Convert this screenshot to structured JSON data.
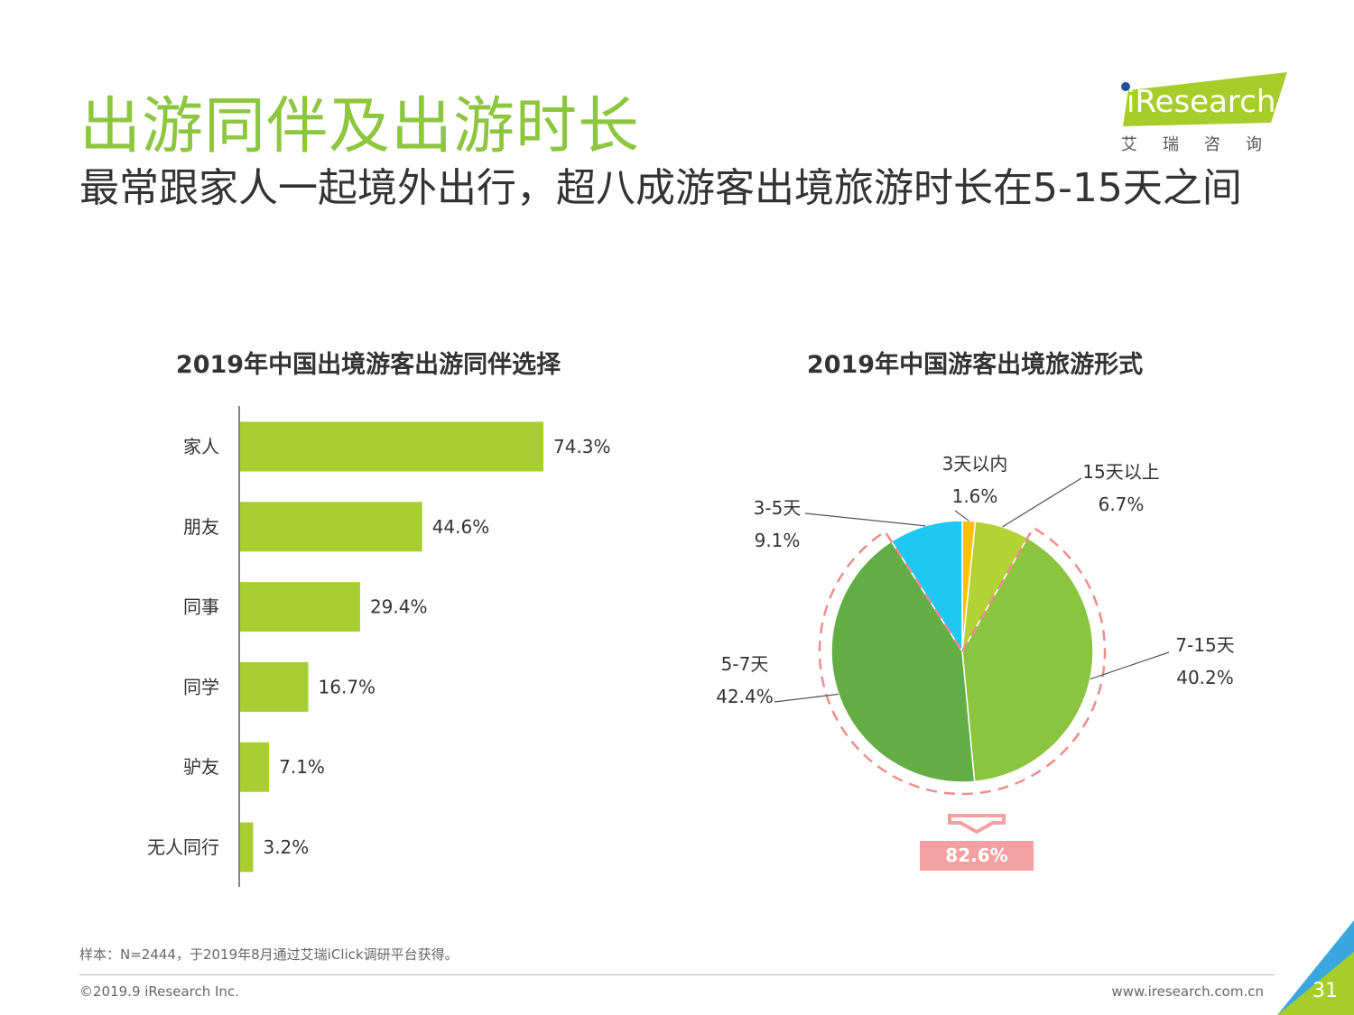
{
  "header": {
    "title": "出游同伴及出游时长",
    "subtitle": "最常跟家人一起境外出行，超八成游客出境旅游时长在5-15天之间"
  },
  "logo": {
    "text": "iResearch",
    "subtitle": "艾瑞咨询",
    "colors": {
      "bg": "#a7cd2a",
      "dot": "#1a4f9c"
    }
  },
  "chart_data": [
    {
      "type": "bar",
      "orientation": "horizontal",
      "title": "2019年中国出境游客出游同伴选择",
      "categories": [
        "家人",
        "朋友",
        "同事",
        "同学",
        "驴友",
        "无人同行"
      ],
      "values": [
        74.3,
        44.6,
        29.4,
        16.7,
        7.1,
        3.2
      ],
      "value_labels": [
        "74.3%",
        "44.6%",
        "29.4%",
        "16.7%",
        "7.1%",
        "3.2%"
      ],
      "color": "#a9ce31",
      "xlim": [
        0,
        100
      ],
      "grid": false
    },
    {
      "type": "pie",
      "title": "2019年中国游客出境旅游形式",
      "slices": [
        {
          "label": "3天以内",
          "value": 1.6,
          "value_label": "1.6%",
          "color": "#ffc000"
        },
        {
          "label": "15天以上",
          "value": 6.7,
          "value_label": "6.7%",
          "color": "#b2d235"
        },
        {
          "label": "7-15天",
          "value": 40.2,
          "value_label": "40.2%",
          "color": "#8bc53f"
        },
        {
          "label": "5-7天",
          "value": 42.4,
          "value_label": "42.4%",
          "color": "#63ad45"
        },
        {
          "label": "3-5天",
          "value": 9.1,
          "value_label": "9.1%",
          "color": "#1ec8f0"
        }
      ],
      "annotation": {
        "text": "82.6%",
        "color": "#f4a0a0"
      }
    }
  ],
  "footer": {
    "note": "样本：N=2444，于2019年8月通过艾瑞iClick调研平台获得。",
    "copyright": "©2019.9 iResearch Inc.",
    "website": "www.iresearch.com.cn",
    "page": "31"
  },
  "colors": {
    "title": "#8dc63f",
    "accent_blue": "#3aa8de"
  }
}
